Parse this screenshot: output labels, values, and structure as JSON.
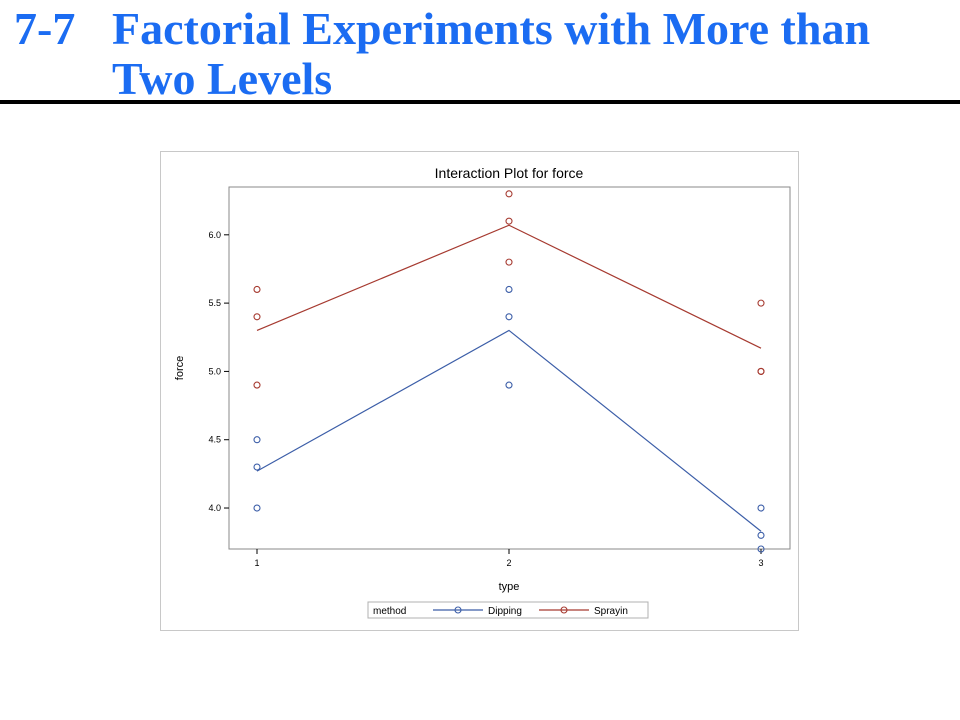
{
  "slide": {
    "number": "7-7",
    "title": "Factorial Experiments with More than Two Levels"
  },
  "colors": {
    "title": "#1b6cf2",
    "dipping": "#3c5ea8",
    "spraying": "#a63a30"
  },
  "chart_data": {
    "type": "line",
    "title": "Interaction Plot for force",
    "xlabel": "type",
    "ylabel": "force",
    "categories": [
      "1",
      "2",
      "3"
    ],
    "yticks": [
      "4.0",
      "4.5",
      "5.0",
      "5.5",
      "6.0"
    ],
    "ylim": [
      3.7,
      6.35
    ],
    "grid": false,
    "legend": {
      "title": "method",
      "placement": "bottom"
    },
    "series": [
      {
        "name": "Dipping",
        "color": "#3c5ea8",
        "means": [
          4.27,
          5.3,
          3.83
        ],
        "observations": [
          [
            4.0,
            4.3,
            4.5
          ],
          [
            4.9,
            5.4,
            5.6
          ],
          [
            3.7,
            3.8,
            4.0
          ]
        ]
      },
      {
        "name": "Sprayin",
        "color": "#a63a30",
        "means": [
          5.3,
          6.07,
          5.17
        ],
        "observations": [
          [
            4.9,
            5.4,
            5.6
          ],
          [
            5.8,
            6.1,
            6.3
          ],
          [
            5.0,
            5.0,
            5.5
          ]
        ]
      }
    ]
  }
}
